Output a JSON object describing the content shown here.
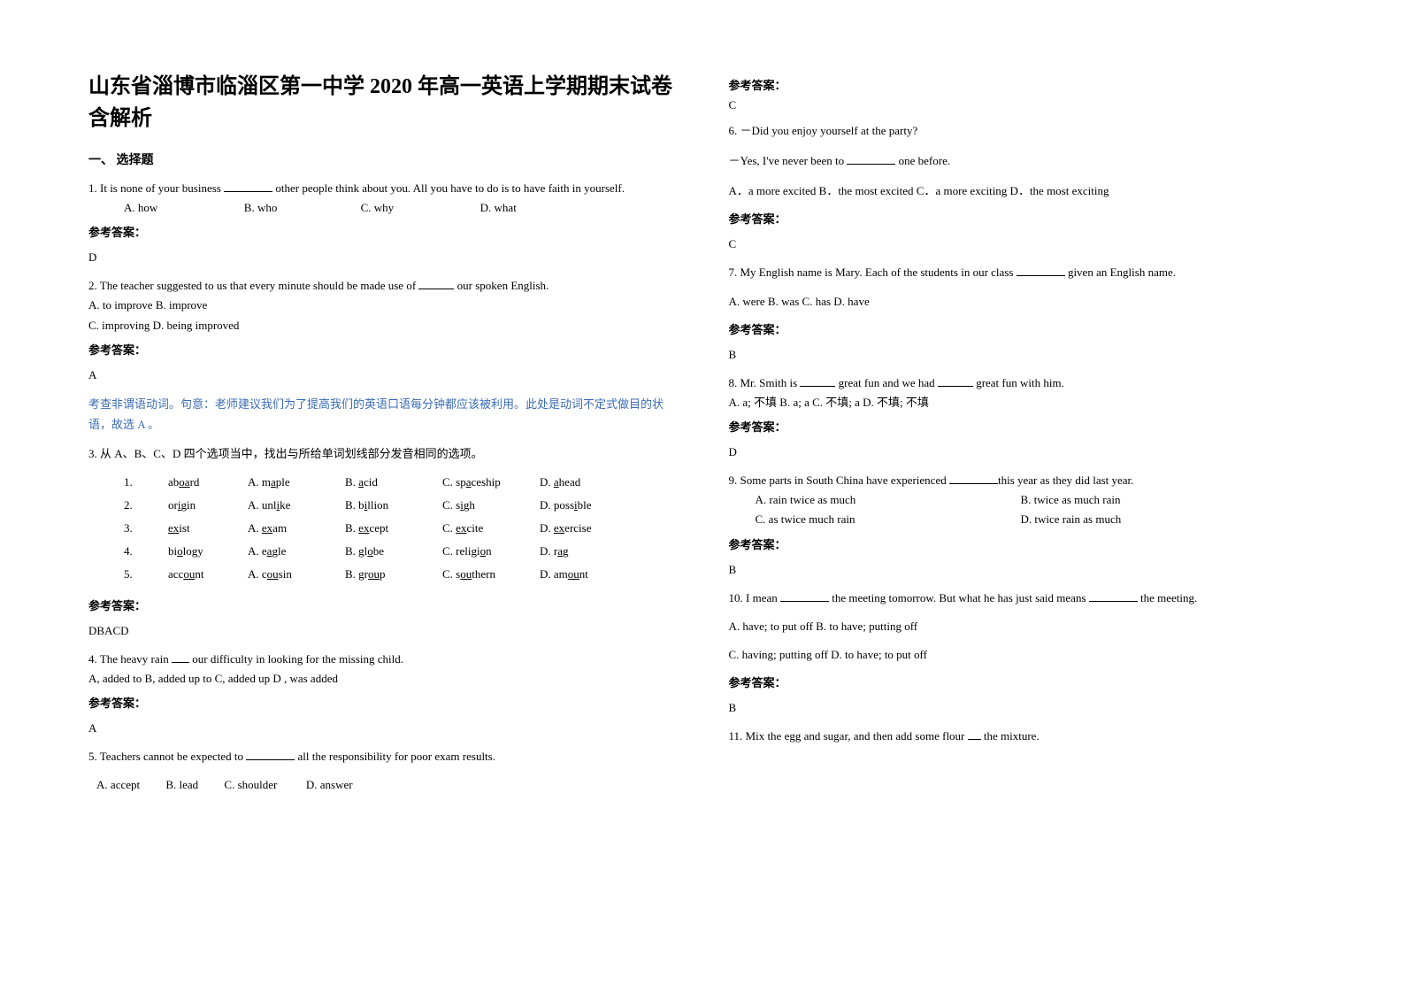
{
  "colors": {
    "text": "#000000",
    "explain": "#3b6db5",
    "background": "#ffffff"
  },
  "title": "山东省淄博市临淄区第一中学 2020 年高一英语上学期期末试卷含解析",
  "section1": "一、 选择题",
  "answer_label": "参考答案：",
  "q1": {
    "text_a": "1. It is none of your business ",
    "text_b": " other people think about you. All you have to do is to have faith in yourself.",
    "opts": "A. how                              B. who                             C. why                              D. what",
    "ans": "D"
  },
  "q2": {
    "text_a": "2. The teacher suggested to us that every minute should be made use of ",
    "text_b": " our spoken English.",
    "opts1": "A. to improve    B. improve",
    "opts2": "C. improving   D. being improved",
    "ans": "A",
    "explain": "考查非谓语动词。句意：老师建议我们为了提高我们的英语口语每分钟都应该被利用。此处是动词不定式做目的状语，故选 A 。"
  },
  "q3": {
    "stem": "3. 从 A、B、C、D 四个选项当中，找出与所给单词划线部分发音相同的选项。",
    "rows": [
      {
        "n": "1.",
        "w": "aboard",
        "wu": "oa",
        "a": "A. maple",
        "au": "a",
        "b": "B. acid",
        "bu": "a",
        "c": "C. spaceship",
        "cu": "a",
        "d": "D. ahead",
        "du": "a"
      },
      {
        "n": "2.",
        "w": "origin",
        "wu": "i",
        "a": "A. unlike",
        "au": "i",
        "b": "B. billion",
        "bu": "i",
        "c": "C. sigh",
        "cu": "i",
        "d": "D. possible",
        "du": "i"
      },
      {
        "n": "3.",
        "w": "exist",
        "wu": "ex",
        "a": "A. exam",
        "au": "ex",
        "b": "B. except",
        "bu": "ex",
        "c": "C. excite",
        "cu": "ex",
        "d": "D. exercise",
        "du": "ex"
      },
      {
        "n": "4.",
        "w": "biology",
        "wu": "o",
        "a": "A. eagle",
        "au": "a",
        "b": "B. globe",
        "bu": "o",
        "c": "C. religion",
        "cu": "o",
        "d": "D. rag",
        "du": "a"
      },
      {
        "n": "5.",
        "w": "account",
        "wu": "ou",
        "a": "A. cousin",
        "au": "ou",
        "b": "B. group",
        "bu": "ou",
        "c": "C. southern",
        "cu": "ou",
        "d": "D. amount",
        "du": "ou"
      }
    ],
    "ans": "DBACD"
  },
  "q4": {
    "text_a": "4. The heavy rain ",
    "text_b": " our difficulty in looking for the missing child.",
    "opts": "A, added to      B, added up to    C, added up      D , was added",
    "ans": "A"
  },
  "q5": {
    "text_a": "5. Teachers cannot be expected to ",
    "text_b": " all the responsibility for poor exam results.",
    "opts": "   A. accept         B. lead         C. shoulder          D. answer",
    "ans": "C"
  },
  "q6": {
    "line1_a": "6. －Did you enjoy yourself at the party?",
    "line2_a": "－Yes, I've never been to ",
    "line2_b": " one before.",
    "opts": "A．a more excited  B．the most excited    C．a more exciting  D．the most exciting",
    "ans": "C"
  },
  "q7": {
    "text_a": "7. My English name is Mary. Each of the students in our class ",
    "text_b": " given an English name.",
    "opts": "A. were    B. was     C. has     D. have",
    "ans": "B"
  },
  "q8": {
    "text_a": "8. Mr. Smith is ",
    "text_b": " great fun and we had ",
    "text_c": " great fun with him.",
    "opts": "A. a; 不填       B. a; a  C. 不填; a D. 不填; 不填",
    "ans": "D"
  },
  "q9": {
    "text_a": "9. Some parts in South China have experienced ",
    "text_b": "this year as they did last year.",
    "optA": "A. rain twice as much",
    "optB": "B. twice as much rain",
    "optC": "C. as twice much rain",
    "optD": "D. twice rain as much",
    "ans": "B"
  },
  "q10": {
    "text_a": "10. I mean ",
    "text_b": " the meeting tomorrow. But what he has just said means ",
    "text_c": " the meeting.",
    "opts1": "A. have; to put off    B. to have; putting off",
    "opts2": "C. having; putting off     D. to have; to put off",
    "ans": "B"
  },
  "q11": {
    "text_a": "11. Mix the egg and sugar, and then add some flour ",
    "text_b": " the mixture."
  }
}
